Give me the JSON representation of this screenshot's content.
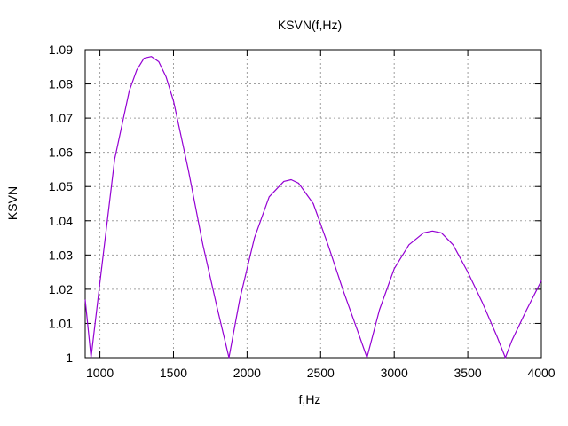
{
  "chart_data": {
    "type": "line",
    "title": "KSVN(f,Hz)",
    "xlabel": "f,Hz",
    "ylabel": "KSVN",
    "xlim": [
      900,
      4000
    ],
    "ylim": [
      1.0,
      1.09
    ],
    "grid": true,
    "legend": "none",
    "x_ticks": [
      1000,
      1500,
      2000,
      2500,
      3000,
      3500,
      4000
    ],
    "x_tick_labels": [
      "1000",
      "1500",
      "2000",
      "2500",
      "3000",
      "3500",
      "4000"
    ],
    "y_ticks": [
      1.0,
      1.01,
      1.02,
      1.03,
      1.04,
      1.05,
      1.06,
      1.07,
      1.08,
      1.09
    ],
    "y_tick_labels": [
      "1",
      "1.01",
      "1.02",
      "1.03",
      "1.04",
      "1.05",
      "1.06",
      "1.07",
      "1.08",
      "1.09"
    ],
    "series": [
      {
        "color": "#9400d3",
        "x": [
          900,
          940,
          1000,
          1100,
          1200,
          1250,
          1300,
          1350,
          1400,
          1450,
          1500,
          1600,
          1700,
          1800,
          1877,
          1950,
          2050,
          2150,
          2250,
          2300,
          2350,
          2450,
          2550,
          2650,
          2750,
          2815,
          2900,
          3000,
          3100,
          3200,
          3260,
          3320,
          3400,
          3500,
          3600,
          3700,
          3755,
          3800,
          3900,
          4000
        ],
        "y": [
          1.017,
          1.0,
          1.022,
          1.058,
          1.078,
          1.084,
          1.0875,
          1.088,
          1.0865,
          1.082,
          1.075,
          1.055,
          1.033,
          1.014,
          1.0,
          1.017,
          1.035,
          1.047,
          1.0515,
          1.052,
          1.051,
          1.045,
          1.033,
          1.02,
          1.008,
          1.0,
          1.014,
          1.026,
          1.033,
          1.0365,
          1.037,
          1.0365,
          1.033,
          1.025,
          1.016,
          1.006,
          1.0,
          1.005,
          1.014,
          1.0225
        ]
      }
    ]
  }
}
